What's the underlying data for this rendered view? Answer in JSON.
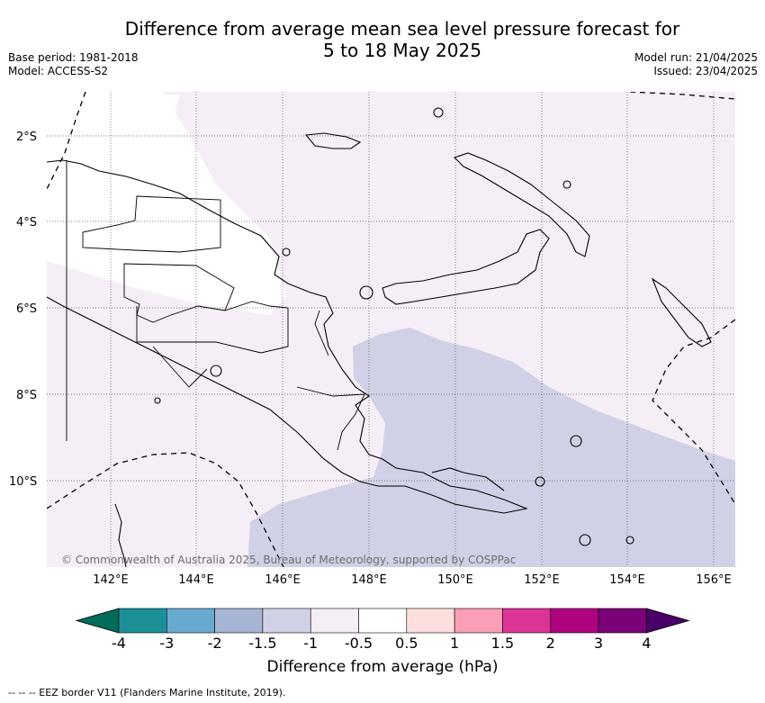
{
  "title": {
    "line1": "Difference from average mean sea level pressure forecast for",
    "line2": "5 to 18 May 2025"
  },
  "meta": {
    "base_period": "Base period: 1981-2018",
    "model": "Model: ACCESS-S2",
    "model_run": "Model run: 21/04/2025",
    "issued": "Issued: 23/04/2025"
  },
  "map": {
    "region": "Papua New Guinea",
    "lat_labels": [
      "2°S",
      "4°S",
      "6°S",
      "8°S",
      "10°S"
    ],
    "lon_labels": [
      "142°E",
      "144°E",
      "146°E",
      "148°E",
      "150°E",
      "152°E",
      "154°E",
      "156°E"
    ],
    "copyright": "© Commonwealth of Australia 2025, Bureau of Meteorology, supported by COSPPac",
    "fill_colors": {
      "minus_1_to_minus_0_5": "#f5eef6",
      "minus_1_5_to_minus_1": "#d0d1e6",
      "minus_0_5_to_0_5": "#ffffff"
    }
  },
  "colorbar": {
    "tick_labels": [
      "-4",
      "-3",
      "-2",
      "-1.5",
      "-1",
      "-0.5",
      "0.5",
      "1",
      "1.5",
      "2",
      "3",
      "4"
    ],
    "colors": [
      "#016c59",
      "#1c9099",
      "#67a9cf",
      "#a6b5d3",
      "#d0d1e6",
      "#f5eef6",
      "#ffffff",
      "#fde0dd",
      "#fa9fb5",
      "#dd3497",
      "#ae017e",
      "#7a0177",
      "#49006a"
    ],
    "label": "Difference from average (hPa)"
  },
  "footnote": "--  --  -- EEZ border V11 (Flanders Marine Institute, 2019)."
}
